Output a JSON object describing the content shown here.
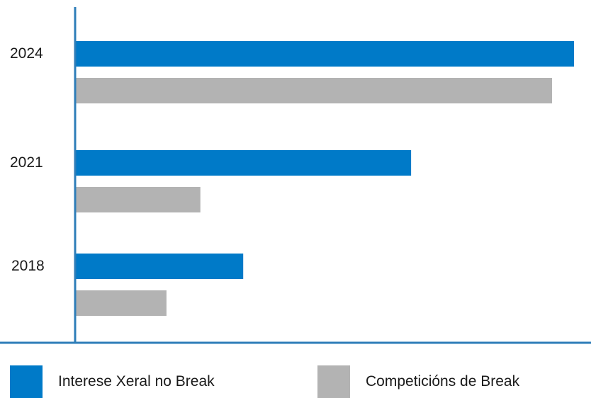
{
  "chart_data": {
    "type": "bar",
    "orientation": "horizontal",
    "categories": [
      "2024",
      "2021",
      "2018"
    ],
    "series": [
      {
        "name": "Interese Xeral no Break",
        "color": "#007AC8",
        "values": [
          100,
          67.3,
          33.6
        ]
      },
      {
        "name": "Competicións de Break",
        "color": "#B3B3B3",
        "values": [
          95.6,
          25,
          18.2
        ]
      }
    ],
    "xlim": [
      0,
      100
    ],
    "grid": false,
    "legend_position": "bottom",
    "axis_color": "#2E7DB8"
  },
  "legend": {
    "items": [
      {
        "label": "Interese Xeral no Break",
        "color": "#007AC8"
      },
      {
        "label": "Competicións de Break",
        "color": "#B3B3B3"
      }
    ]
  }
}
